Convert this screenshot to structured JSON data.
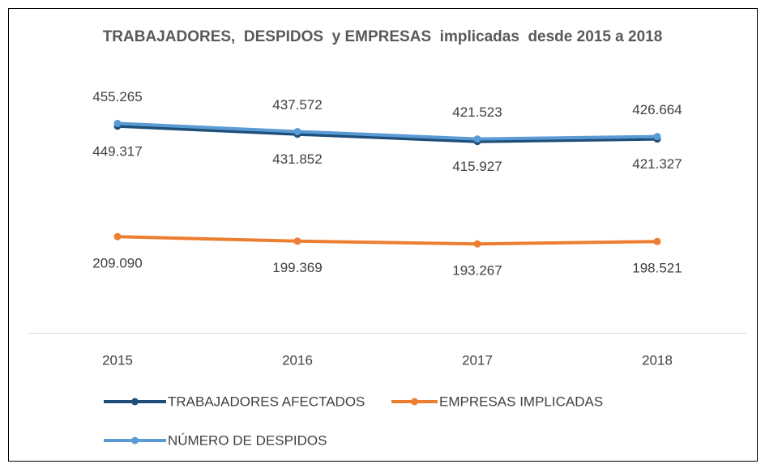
{
  "chart_data": {
    "type": "line",
    "title": "TRABAJADORES,  DESPIDOS  y EMPRESAS  implicadas  desde 2015 a 2018",
    "categories": [
      "2015",
      "2016",
      "2017",
      "2018"
    ],
    "ylim": [
      0,
      500000
    ],
    "series": [
      {
        "name": "TRABAJADORES AFECTADOS",
        "color": "#1f4e79",
        "values": [
          449317,
          431852,
          415927,
          421327
        ],
        "value_labels": [
          "449.317",
          "431.852",
          "415.927",
          "421.327"
        ]
      },
      {
        "name": "EMPRESAS IMPLICADAS",
        "color": "#ed7d31",
        "values": [
          209090,
          199369,
          193267,
          198521
        ],
        "value_labels": [
          "209.090",
          "199.369",
          "193.267",
          "198.521"
        ]
      },
      {
        "name": "NÚMERO DE DESPIDOS",
        "color": "#5b9bd5",
        "values": [
          455265,
          437572,
          421523,
          426664
        ],
        "value_labels": [
          "455.265",
          "437.572",
          "421.523",
          "426.664"
        ]
      }
    ]
  }
}
